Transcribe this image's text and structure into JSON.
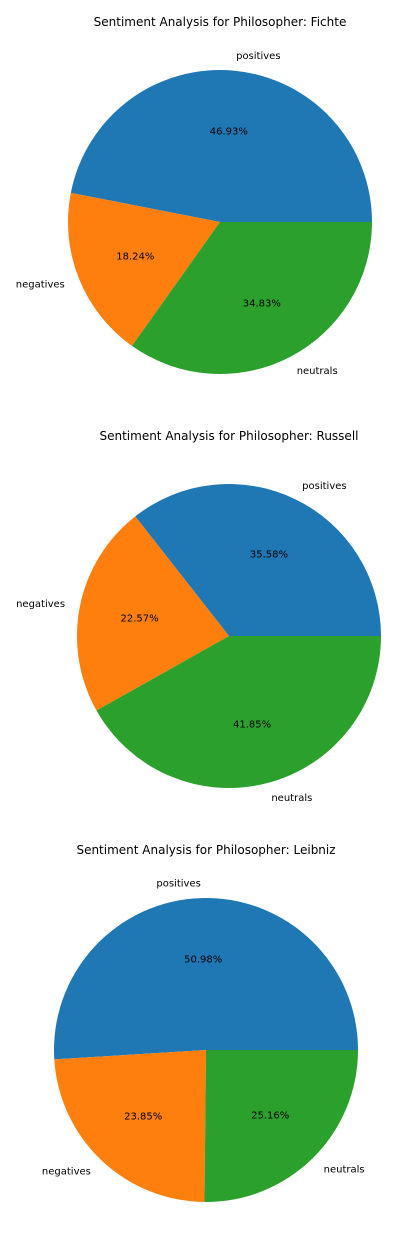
{
  "chart_data": [
    {
      "type": "pie",
      "title": "Sentiment Analysis for  Philosopher: Fichte",
      "labels": [
        "positives",
        "negatives",
        "neutrals"
      ],
      "values": [
        46.93,
        18.24,
        34.83
      ],
      "autopct": [
        "46.93%",
        "18.24%",
        "34.83%"
      ],
      "colors": [
        "#1f77b4",
        "#ff7f0e",
        "#2ca02c"
      ],
      "start_angle_deg": 0,
      "direction": "counterclockwise"
    },
    {
      "type": "pie",
      "title": "Sentiment Analysis for  Philosopher: Russell",
      "labels": [
        "positives",
        "negatives",
        "neutrals"
      ],
      "values": [
        35.58,
        22.57,
        41.85
      ],
      "autopct": [
        "35.58%",
        "22.57%",
        "41.85%"
      ],
      "colors": [
        "#1f77b4",
        "#ff7f0e",
        "#2ca02c"
      ],
      "start_angle_deg": 0,
      "direction": "counterclockwise"
    },
    {
      "type": "pie",
      "title": "Sentiment Analysis for  Philosopher: Leibniz",
      "labels": [
        "positives",
        "negatives",
        "neutrals"
      ],
      "values": [
        50.98,
        23.85,
        25.16
      ],
      "autopct": [
        "50.98%",
        "23.85%",
        "25.16%"
      ],
      "colors": [
        "#1f77b4",
        "#ff7f0e",
        "#2ca02c"
      ],
      "start_angle_deg": 0,
      "direction": "counterclockwise"
    }
  ]
}
